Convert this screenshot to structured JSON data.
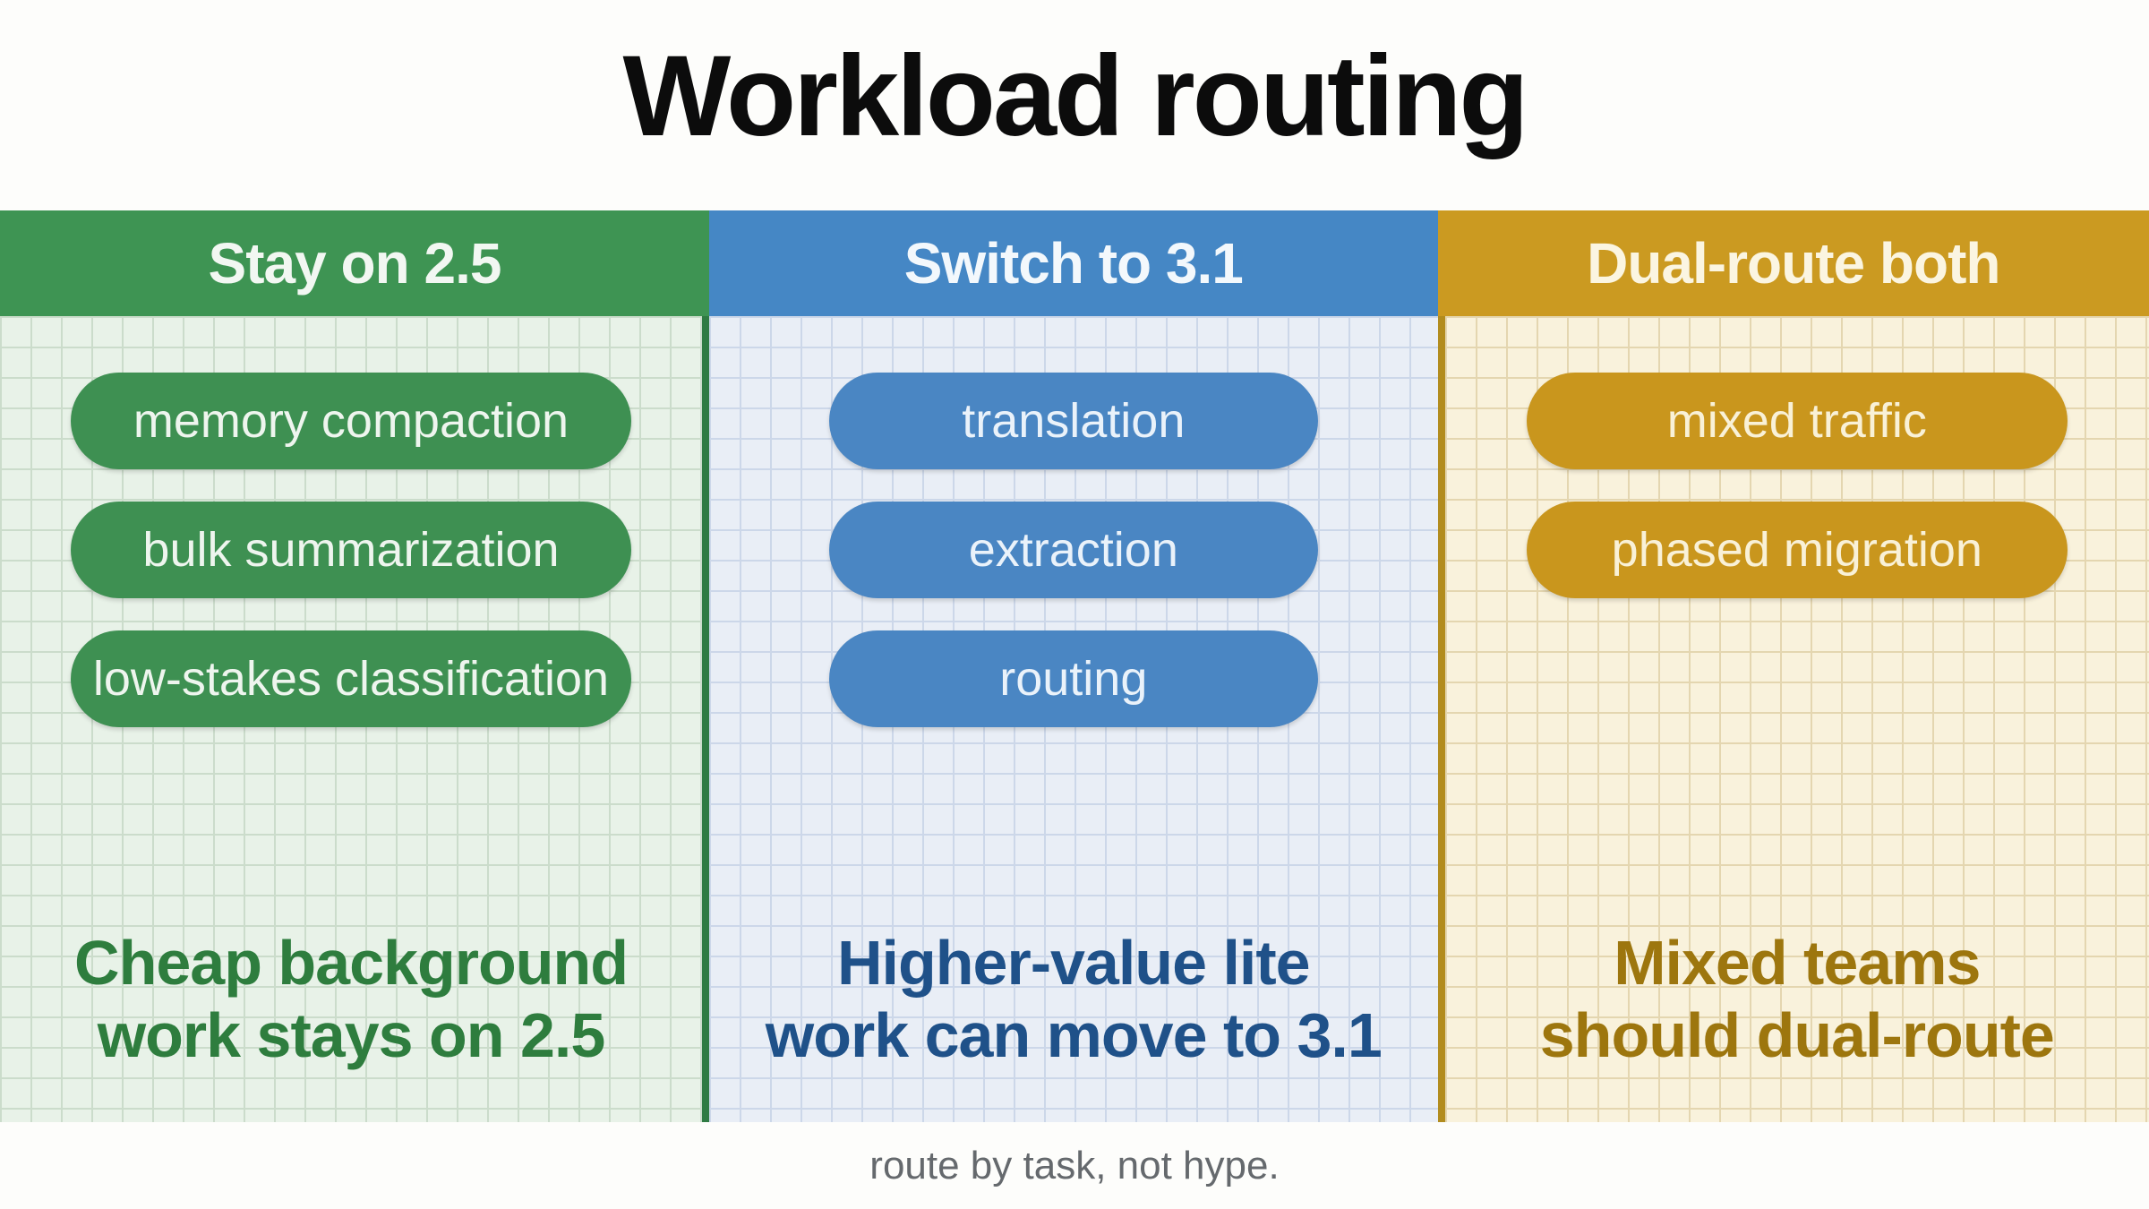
{
  "title": "Workload routing",
  "footer": "route by task, not hype.",
  "colors": {
    "page_bg": "#fdfdfb",
    "title_text": "#0c0c0c",
    "footer_text": "#65696d"
  },
  "columns": [
    {
      "header": "Stay on 2.5",
      "pills": [
        "memory compaction",
        "bulk summarization",
        "low-stakes classification"
      ],
      "note_lines": [
        "Cheap background",
        "work stays on 2.5"
      ],
      "colors": {
        "header_bg": "#3e9453",
        "header_text": "#f2f7f2",
        "pill_bg": "#3e9052",
        "pill_text": "#eef5ee",
        "body_bg": "#e8f2e8",
        "grid": "#cbdccb",
        "note_text": "#2e7d3e",
        "separator": "#2f7b43"
      }
    },
    {
      "header": "Switch to 3.1",
      "pills": [
        "translation",
        "extraction",
        "routing"
      ],
      "note_lines": [
        "Higher-value lite",
        "work can move to 3.1"
      ],
      "colors": {
        "header_bg": "#4587c5",
        "header_text": "#f3f8fc",
        "pill_bg": "#4a86c3",
        "pill_text": "#eaf2fa",
        "body_bg": "#e9eef6",
        "grid": "#ccd7e9",
        "note_text": "#1f5189"
      }
    },
    {
      "header": "Dual-route both",
      "pills": [
        "mixed traffic",
        "phased migration"
      ],
      "note_lines": [
        "Mixed teams",
        "should dual-route"
      ],
      "colors": {
        "header_bg": "#cb9a21",
        "header_text": "#fbf5e1",
        "pill_bg": "#c9961d",
        "pill_text": "#f9f1d7",
        "body_bg": "#f9f2dc",
        "grid": "#e4d6b0",
        "note_text": "#9d760e",
        "separator": "#b28c1e"
      }
    }
  ]
}
